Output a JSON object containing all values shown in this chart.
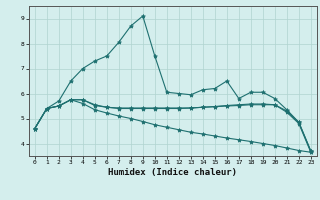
{
  "xlabel": "Humidex (Indice chaleur)",
  "ylabel": "",
  "background_color": "#d4eeed",
  "grid_color": "#b0d4d0",
  "line_color": "#1e7070",
  "x_values": [
    0,
    1,
    2,
    3,
    4,
    5,
    6,
    7,
    8,
    9,
    10,
    11,
    12,
    13,
    14,
    15,
    16,
    17,
    18,
    19,
    20,
    21,
    22,
    23
  ],
  "line1": [
    4.6,
    5.4,
    5.5,
    5.75,
    5.75,
    5.55,
    5.45,
    5.4,
    5.4,
    5.4,
    5.4,
    5.4,
    5.4,
    5.42,
    5.45,
    5.47,
    5.5,
    5.52,
    5.55,
    5.55,
    5.55,
    5.3,
    4.85,
    3.7
  ],
  "line2": [
    4.6,
    5.4,
    5.7,
    6.5,
    7.0,
    7.3,
    7.5,
    8.05,
    8.7,
    9.1,
    7.5,
    6.05,
    6.0,
    5.95,
    6.15,
    6.2,
    6.5,
    5.8,
    6.05,
    6.05,
    5.8,
    5.35,
    4.85,
    3.7
  ],
  "line3": [
    4.6,
    5.4,
    5.5,
    5.75,
    5.75,
    5.52,
    5.45,
    5.42,
    5.42,
    5.42,
    5.42,
    5.42,
    5.42,
    5.42,
    5.45,
    5.48,
    5.52,
    5.55,
    5.58,
    5.58,
    5.55,
    5.25,
    4.8,
    3.65
  ],
  "line4": [
    4.6,
    5.4,
    5.5,
    5.75,
    5.6,
    5.35,
    5.22,
    5.1,
    5.0,
    4.88,
    4.75,
    4.65,
    4.55,
    4.45,
    4.38,
    4.3,
    4.22,
    4.15,
    4.08,
    4.0,
    3.92,
    3.82,
    3.72,
    3.65
  ],
  "ylim": [
    3.5,
    9.5
  ],
  "yticks": [
    4,
    5,
    6,
    7,
    8,
    9
  ],
  "xlim": [
    -0.5,
    23.5
  ]
}
